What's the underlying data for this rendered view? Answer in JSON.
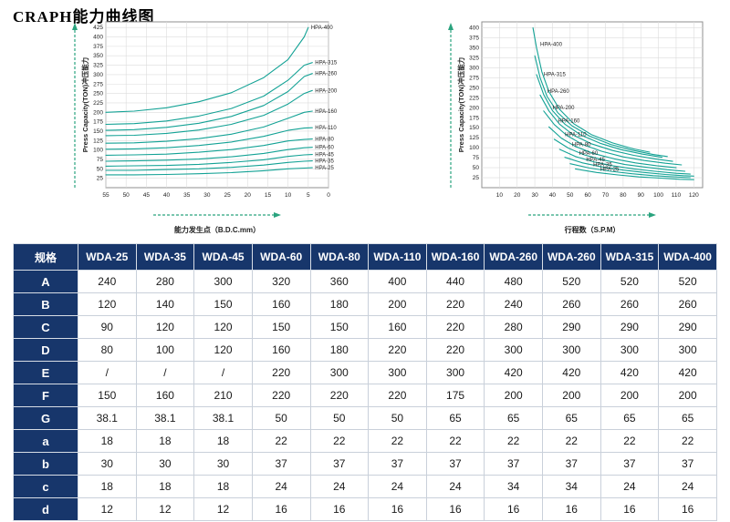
{
  "page": {
    "title": "CRAPH能力曲线图"
  },
  "chart_data": [
    {
      "type": "line",
      "title": "",
      "ylabel": "Press Capacity(TON)冲压能力",
      "xlabel": "能力发生点（B.D.C.mm）",
      "x_range": [
        55,
        0
      ],
      "y_range": [
        0,
        440
      ],
      "x_ticks": [
        55,
        50,
        45,
        40,
        35,
        30,
        25,
        20,
        15,
        10,
        5,
        0
      ],
      "y_ticks": [
        25,
        50,
        75,
        100,
        125,
        150,
        175,
        200,
        225,
        250,
        275,
        300,
        325,
        350,
        375,
        400,
        425
      ],
      "grid": true,
      "label_mode": "end",
      "series": [
        {
          "name": "HPA-400",
          "points": [
            [
              55,
              200
            ],
            [
              48,
              203
            ],
            [
              40,
              212
            ],
            [
              32,
              228
            ],
            [
              24,
              252
            ],
            [
              16,
              292
            ],
            [
              10,
              340
            ],
            [
              6,
              400
            ],
            [
              5,
              425
            ]
          ]
        },
        {
          "name": "HPA-315",
          "points": [
            [
              55,
              168
            ],
            [
              48,
              170
            ],
            [
              40,
              177
            ],
            [
              32,
              190
            ],
            [
              24,
              210
            ],
            [
              16,
              243
            ],
            [
              10,
              285
            ],
            [
              6,
              325
            ],
            [
              4,
              332
            ]
          ]
        },
        {
          "name": "HPA-260",
          "points": [
            [
              55,
              152
            ],
            [
              48,
              154
            ],
            [
              40,
              160
            ],
            [
              32,
              171
            ],
            [
              24,
              189
            ],
            [
              16,
              218
            ],
            [
              10,
              255
            ],
            [
              6,
              295
            ],
            [
              4,
              303
            ]
          ]
        },
        {
          "name": "HPA-200",
          "points": [
            [
              55,
              138
            ],
            [
              48,
              139
            ],
            [
              40,
              144
            ],
            [
              32,
              153
            ],
            [
              24,
              168
            ],
            [
              16,
              192
            ],
            [
              10,
              222
            ],
            [
              6,
              250
            ],
            [
              4,
              258
            ]
          ]
        },
        {
          "name": "HPA-160",
          "points": [
            [
              55,
              118
            ],
            [
              48,
              119
            ],
            [
              40,
              123
            ],
            [
              32,
              130
            ],
            [
              24,
              142
            ],
            [
              16,
              161
            ],
            [
              10,
              184
            ],
            [
              6,
              200
            ],
            [
              4,
              203
            ]
          ]
        },
        {
          "name": "HPA-110",
          "points": [
            [
              55,
              102
            ],
            [
              48,
              103
            ],
            [
              40,
              106
            ],
            [
              32,
              112
            ],
            [
              24,
              121
            ],
            [
              16,
              136
            ],
            [
              10,
              152
            ],
            [
              6,
              158
            ],
            [
              4,
              159
            ]
          ]
        },
        {
          "name": "HPA-80",
          "points": [
            [
              55,
              86
            ],
            [
              48,
              87
            ],
            [
              40,
              89
            ],
            [
              32,
              94
            ],
            [
              24,
              101
            ],
            [
              16,
              112
            ],
            [
              10,
              124
            ],
            [
              6,
              128
            ],
            [
              4,
              129
            ]
          ]
        },
        {
          "name": "HPA-60",
          "points": [
            [
              55,
              70
            ],
            [
              48,
              71
            ],
            [
              40,
              73
            ],
            [
              32,
              76
            ],
            [
              24,
              82
            ],
            [
              16,
              91
            ],
            [
              10,
              101
            ],
            [
              6,
              106
            ],
            [
              4,
              107
            ]
          ]
        },
        {
          "name": "HPA-45",
          "points": [
            [
              55,
              57
            ],
            [
              48,
              58
            ],
            [
              40,
              59
            ],
            [
              32,
              62
            ],
            [
              24,
              67
            ],
            [
              16,
              74
            ],
            [
              10,
              83
            ],
            [
              6,
              87
            ],
            [
              4,
              88
            ]
          ]
        },
        {
          "name": "HPA-35",
          "points": [
            [
              55,
              46
            ],
            [
              48,
              46
            ],
            [
              40,
              48
            ],
            [
              32,
              50
            ],
            [
              24,
              54
            ],
            [
              16,
              60
            ],
            [
              10,
              67
            ],
            [
              6,
              70
            ],
            [
              4,
              71
            ]
          ]
        },
        {
          "name": "HPA-25",
          "points": [
            [
              55,
              34
            ],
            [
              48,
              34
            ],
            [
              40,
              35
            ],
            [
              32,
              37
            ],
            [
              24,
              40
            ],
            [
              16,
              45
            ],
            [
              10,
              50
            ],
            [
              6,
              52
            ],
            [
              4,
              53
            ]
          ]
        }
      ]
    },
    {
      "type": "line",
      "title": "",
      "ylabel": "Press Capacity(TON)冲压能力",
      "xlabel": "行程数（S.P.M）",
      "x_range": [
        0,
        125
      ],
      "y_range": [
        0,
        415
      ],
      "x_ticks": [
        10,
        20,
        30,
        40,
        50,
        60,
        70,
        80,
        90,
        100,
        110,
        120
      ],
      "y_ticks": [
        25,
        50,
        75,
        100,
        125,
        150,
        175,
        200,
        225,
        250,
        275,
        300,
        325,
        350,
        375,
        400
      ],
      "grid": true,
      "label_mode": "start",
      "series": [
        {
          "name": "HPA-400",
          "points": [
            [
              29,
              400
            ],
            [
              31,
              350
            ],
            [
              34,
              290
            ],
            [
              38,
              240
            ],
            [
              44,
              196
            ],
            [
              52,
              160
            ],
            [
              62,
              133
            ],
            [
              74,
              112
            ],
            [
              86,
              97
            ],
            [
              95,
              89
            ]
          ]
        },
        {
          "name": "HPA-315",
          "points": [
            [
              30,
              330
            ],
            [
              33,
              275
            ],
            [
              37,
              228
            ],
            [
              43,
              188
            ],
            [
              51,
              155
            ],
            [
              61,
              129
            ],
            [
              73,
              108
            ],
            [
              85,
              94
            ],
            [
              97,
              83
            ],
            [
              105,
              78
            ]
          ]
        },
        {
          "name": "HPA-260",
          "points": [
            [
              31,
              283
            ],
            [
              35,
              233
            ],
            [
              40,
              193
            ],
            [
              47,
              159
            ],
            [
              56,
              132
            ],
            [
              67,
              111
            ],
            [
              79,
              95
            ],
            [
              91,
              84
            ],
            [
              102,
              76
            ]
          ]
        },
        {
          "name": "HPA-200",
          "points": [
            [
              33,
              232
            ],
            [
              38,
              192
            ],
            [
              44,
              159
            ],
            [
              52,
              131
            ],
            [
              62,
              110
            ],
            [
              74,
              93
            ],
            [
              86,
              81
            ],
            [
              98,
              72
            ],
            [
              108,
              66
            ]
          ]
        },
        {
          "name": "HPA-160",
          "points": [
            [
              35,
              192
            ],
            [
              41,
              158
            ],
            [
              48,
              131
            ],
            [
              57,
              108
            ],
            [
              68,
              91
            ],
            [
              80,
              77
            ],
            [
              92,
              68
            ],
            [
              104,
              61
            ],
            [
              113,
              57
            ]
          ]
        },
        {
          "name": "HPA-110",
          "points": [
            [
              38,
              152
            ],
            [
              45,
              124
            ],
            [
              53,
              103
            ],
            [
              63,
              86
            ],
            [
              75,
              72
            ],
            [
              87,
              62
            ],
            [
              99,
              55
            ],
            [
              110,
              50
            ]
          ]
        },
        {
          "name": "HPA-80",
          "points": [
            [
              41,
              121
            ],
            [
              49,
              99
            ],
            [
              58,
              82
            ],
            [
              69,
              69
            ],
            [
              81,
              58
            ],
            [
              93,
              51
            ],
            [
              105,
              45
            ],
            [
              115,
              41
            ]
          ]
        },
        {
          "name": "HPA-60",
          "points": [
            [
              44,
              96
            ],
            [
              53,
              78
            ],
            [
              63,
              65
            ],
            [
              74,
              55
            ],
            [
              86,
              47
            ],
            [
              98,
              41
            ],
            [
              110,
              36
            ],
            [
              118,
              34
            ]
          ]
        },
        {
          "name": "HPA-45",
          "points": [
            [
              47,
              76
            ],
            [
              57,
              62
            ],
            [
              68,
              52
            ],
            [
              80,
              44
            ],
            [
              92,
              38
            ],
            [
              104,
              33
            ],
            [
              114,
              30
            ],
            [
              120,
              29
            ]
          ]
        },
        {
          "name": "HPA-35",
          "points": [
            [
              50,
              60
            ],
            [
              61,
              49
            ],
            [
              73,
              41
            ],
            [
              85,
              35
            ],
            [
              97,
              30
            ],
            [
              109,
              27
            ],
            [
              118,
              25
            ]
          ]
        },
        {
          "name": "HPA-25",
          "points": [
            [
              53,
              47
            ],
            [
              65,
              38
            ],
            [
              77,
              32
            ],
            [
              89,
              27
            ],
            [
              101,
              24
            ],
            [
              112,
              21
            ],
            [
              120,
              20
            ]
          ]
        }
      ]
    }
  ],
  "table": {
    "columns": [
      "规格",
      "WDA-25",
      "WDA-35",
      "WDA-45",
      "WDA-60",
      "WDA-80",
      "WDA-110",
      "WDA-160",
      "WDA-260",
      "WDA-260",
      "WDA-315",
      "WDA-400"
    ],
    "rows": [
      {
        "label": "A",
        "values": [
          "240",
          "280",
          "300",
          "320",
          "360",
          "400",
          "440",
          "480",
          "520",
          "520",
          "520"
        ]
      },
      {
        "label": "B",
        "values": [
          "120",
          "140",
          "150",
          "160",
          "180",
          "200",
          "220",
          "240",
          "260",
          "260",
          "260"
        ]
      },
      {
        "label": "C",
        "values": [
          "90",
          "120",
          "120",
          "150",
          "150",
          "160",
          "220",
          "280",
          "290",
          "290",
          "290"
        ]
      },
      {
        "label": "D",
        "values": [
          "80",
          "100",
          "120",
          "160",
          "180",
          "220",
          "220",
          "300",
          "300",
          "300",
          "300"
        ]
      },
      {
        "label": "E",
        "values": [
          "/",
          "/",
          "/",
          "220",
          "300",
          "300",
          "300",
          "420",
          "420",
          "420",
          "420"
        ]
      },
      {
        "label": "F",
        "values": [
          "150",
          "160",
          "210",
          "220",
          "220",
          "220",
          "175",
          "200",
          "200",
          "200",
          "200"
        ]
      },
      {
        "label": "G",
        "values": [
          "38.1",
          "38.1",
          "38.1",
          "50",
          "50",
          "50",
          "65",
          "65",
          "65",
          "65",
          "65"
        ]
      },
      {
        "label": "a",
        "values": [
          "18",
          "18",
          "18",
          "22",
          "22",
          "22",
          "22",
          "22",
          "22",
          "22",
          "22"
        ]
      },
      {
        "label": "b",
        "values": [
          "30",
          "30",
          "30",
          "37",
          "37",
          "37",
          "37",
          "37",
          "37",
          "37",
          "37"
        ]
      },
      {
        "label": "c",
        "values": [
          "18",
          "18",
          "18",
          "24",
          "24",
          "24",
          "24",
          "34",
          "34",
          "24",
          "24"
        ]
      },
      {
        "label": "d",
        "values": [
          "12",
          "12",
          "12",
          "16",
          "16",
          "16",
          "16",
          "16",
          "16",
          "16",
          "16"
        ]
      }
    ]
  },
  "colors": {
    "curve": "#13a295",
    "arrow": "#2aa37e",
    "header_bg": "#17366b",
    "grid": "#dcdcdc"
  }
}
